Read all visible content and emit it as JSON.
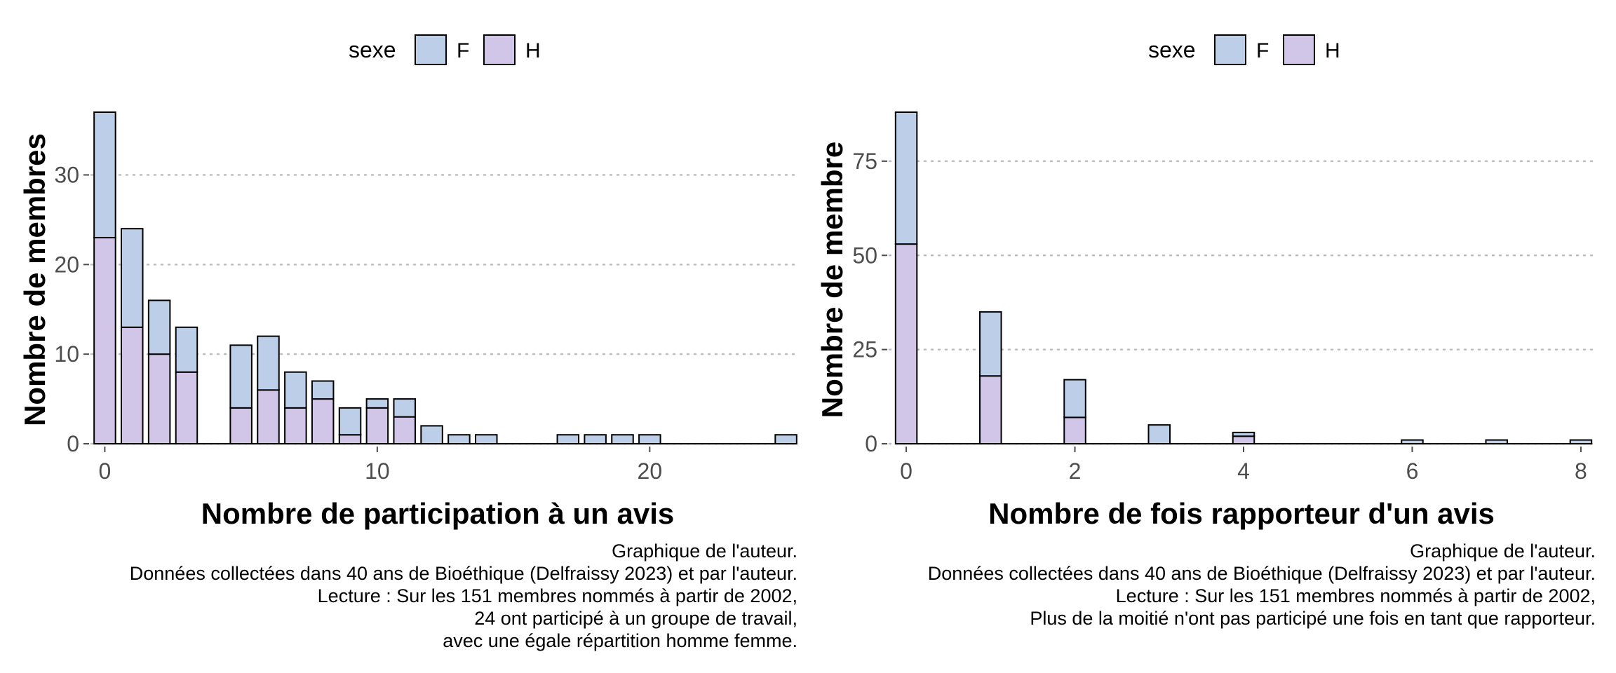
{
  "charts": [
    {
      "legend": {
        "title": "sexe",
        "items": [
          "F",
          "H"
        ]
      },
      "ylabel": "Nombre de membres",
      "xlabel": "Nombre de participation à un avis",
      "caption": [
        "Graphique de l'auteur.",
        "Données collectées dans 40 ans de Bioéthique (Delfraissy 2023) et par l'auteur.",
        "Lecture : Sur les 151 membres nommés à partir de 2002,",
        "24 ont participé à un groupe de travail,",
        "avec une égale répartition homme femme."
      ]
    },
    {
      "legend": {
        "title": "sexe",
        "items": [
          "F",
          "H"
        ]
      },
      "ylabel": "Nombre de membre",
      "xlabel": "Nombre de fois rapporteur d'un avis",
      "caption": [
        "Graphique de l'auteur.",
        "Données collectées dans 40 ans de Bioéthique (Delfraissy 2023) et par l'auteur.",
        "Lecture : Sur les 151 membres nommés à partir de 2002,",
        "Plus de la moitié n'ont pas participé une fois en tant que rapporteur."
      ]
    }
  ],
  "colors": {
    "F": "#bccee8",
    "H": "#d2c6e8",
    "outline": "#000000",
    "grid": "#bdbdbd"
  },
  "chart_data": [
    {
      "type": "bar",
      "stacked": true,
      "histogram": true,
      "xlabel": "Nombre de participation à un avis",
      "ylabel": "Nombre de membres",
      "legend_title": "sexe",
      "legend_position": "top",
      "x": [
        0,
        1,
        2,
        3,
        5,
        6,
        7,
        8,
        9,
        10,
        11,
        12,
        13,
        14,
        17,
        18,
        19,
        20,
        21,
        22,
        23,
        24,
        25
      ],
      "series": [
        {
          "name": "H",
          "values": [
            23,
            13,
            10,
            8,
            4,
            6,
            4,
            5,
            1,
            4,
            3,
            0,
            0,
            0,
            0,
            0,
            0,
            0,
            0,
            0,
            0,
            0,
            0
          ]
        },
        {
          "name": "F",
          "values": [
            14,
            11,
            6,
            5,
            7,
            6,
            4,
            2,
            3,
            1,
            2,
            2,
            1,
            1,
            1,
            1,
            1,
            1,
            0,
            0,
            0,
            0,
            1
          ]
        }
      ],
      "xlim": [
        -0.5,
        25.5
      ],
      "ylim": [
        0,
        37
      ],
      "x_ticks": [
        0,
        10,
        20
      ],
      "y_ticks": [
        0,
        10,
        20,
        30
      ],
      "grid": "horizontal-dotted"
    },
    {
      "type": "bar",
      "stacked": true,
      "histogram": true,
      "xlabel": "Nombre de fois rapporteur d'un avis",
      "ylabel": "Nombre de membre",
      "legend_title": "sexe",
      "legend_position": "top",
      "x": [
        0,
        1,
        2,
        3,
        4,
        6,
        7,
        8
      ],
      "series": [
        {
          "name": "H",
          "values": [
            53,
            18,
            7,
            0,
            2,
            0,
            0,
            0
          ]
        },
        {
          "name": "F",
          "values": [
            35,
            17,
            10,
            5,
            1,
            1,
            1,
            1
          ]
        }
      ],
      "xlim": [
        -0.2,
        8.2
      ],
      "ylim": [
        0,
        88
      ],
      "x_ticks": [
        0,
        2,
        4,
        6,
        8
      ],
      "y_ticks": [
        0,
        25,
        50,
        75
      ],
      "grid": "horizontal-dotted"
    }
  ]
}
